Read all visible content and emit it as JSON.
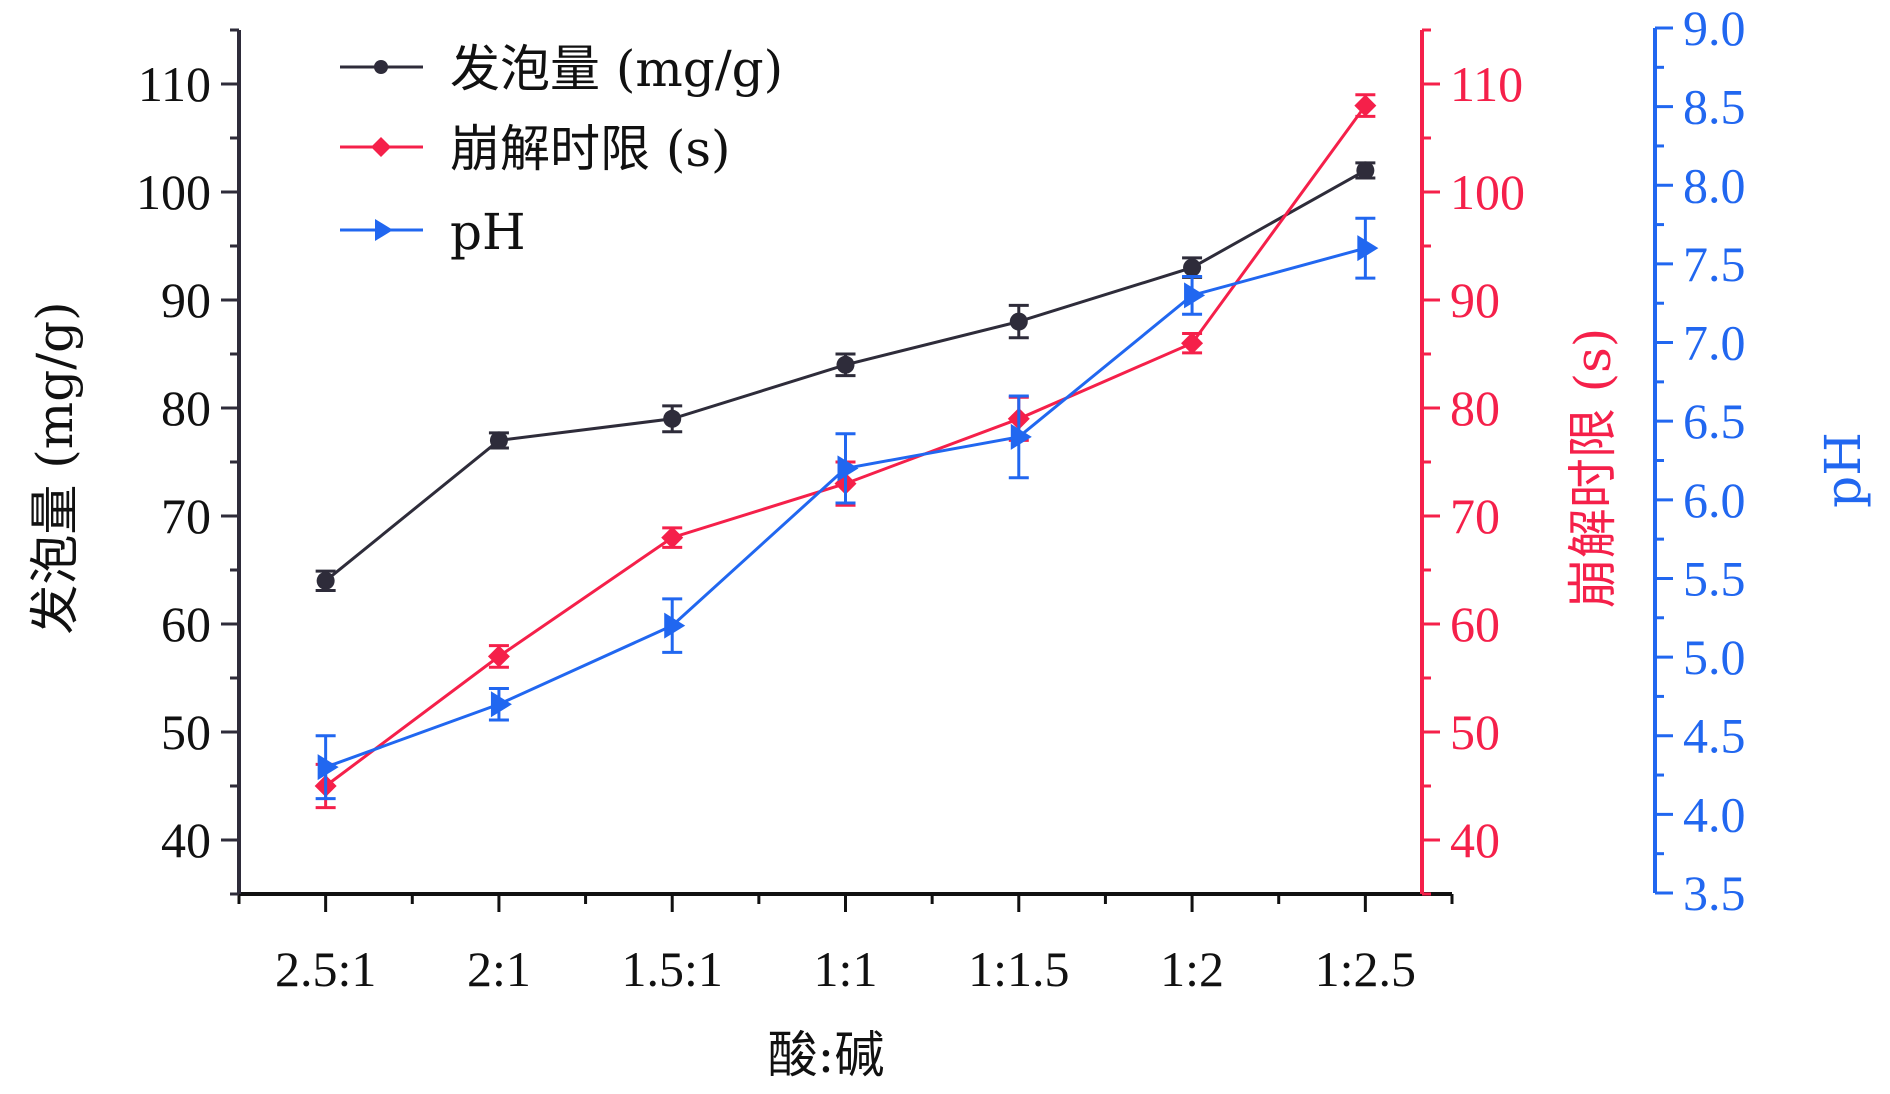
{
  "chart_data": {
    "type": "line",
    "title": "",
    "xlabel": "酸:碱",
    "categories": [
      "2.5:1",
      "2:1",
      "1.5:1",
      "1:1",
      "1:1.5",
      "1:2",
      "1:2.5"
    ],
    "xlim": [
      -0.5,
      6.5
    ],
    "axes": {
      "left": {
        "label": "发泡量 (mg/g)",
        "ylim": [
          35,
          115
        ],
        "ticks": [
          40,
          50,
          60,
          70,
          80,
          90,
          100,
          110
        ],
        "tick_labels": [
          "40",
          "50",
          "60",
          "70",
          "80",
          "90",
          "100",
          "110"
        ],
        "minor_step": 5,
        "color": "#2e2c3a"
      },
      "right": {
        "label": "崩解时限 (s)",
        "ylim": [
          35,
          115
        ],
        "ticks": [
          40,
          50,
          60,
          70,
          80,
          90,
          100,
          110
        ],
        "tick_labels": [
          "40",
          "50",
          "60",
          "70",
          "80",
          "90",
          "100",
          "110"
        ],
        "minor_step": 5,
        "color": "#f5204a"
      },
      "right2": {
        "label": "pH",
        "ylim": [
          3.5,
          9.0
        ],
        "ticks": [
          3.5,
          4.0,
          4.5,
          5.0,
          5.5,
          6.0,
          6.5,
          7.0,
          7.5,
          8.0,
          8.5,
          9.0
        ],
        "tick_labels": [
          "3.5",
          "4.0",
          "4.5",
          "5.0",
          "5.5",
          "6.0",
          "6.5",
          "7.0",
          "7.5",
          "8.0",
          "8.5",
          "9.0"
        ],
        "minor_step": 0.25,
        "color": "#2167f0"
      }
    },
    "series": [
      {
        "name": "发泡量 (mg/g)",
        "axis": "left",
        "marker": "circle",
        "color": "#2e2c3a",
        "values": [
          64,
          77,
          79,
          84,
          88,
          93,
          102
        ],
        "errors": [
          0.9,
          0.7,
          1.2,
          1.0,
          1.5,
          0.9,
          0.7
        ]
      },
      {
        "name": "崩解时限 (s)",
        "axis": "right",
        "marker": "diamond",
        "color": "#f5204a",
        "values": [
          45,
          57,
          68,
          73,
          79,
          86,
          108
        ],
        "errors": [
          2.0,
          1.0,
          0.9,
          2.0,
          2.0,
          0.9,
          1.0
        ]
      },
      {
        "name": "pH",
        "axis": "right2",
        "marker": "triangle-right",
        "color": "#2167f0",
        "values": [
          4.3,
          4.7,
          5.2,
          6.2,
          6.4,
          7.3,
          7.6
        ],
        "errors": [
          0.2,
          0.1,
          0.17,
          0.22,
          0.26,
          0.12,
          0.19
        ]
      }
    ],
    "legend": {
      "placement": "top-left",
      "entries": [
        "发泡量 (mg/g)",
        "崩解时限 (s)",
        "pH"
      ]
    },
    "grid": false
  }
}
